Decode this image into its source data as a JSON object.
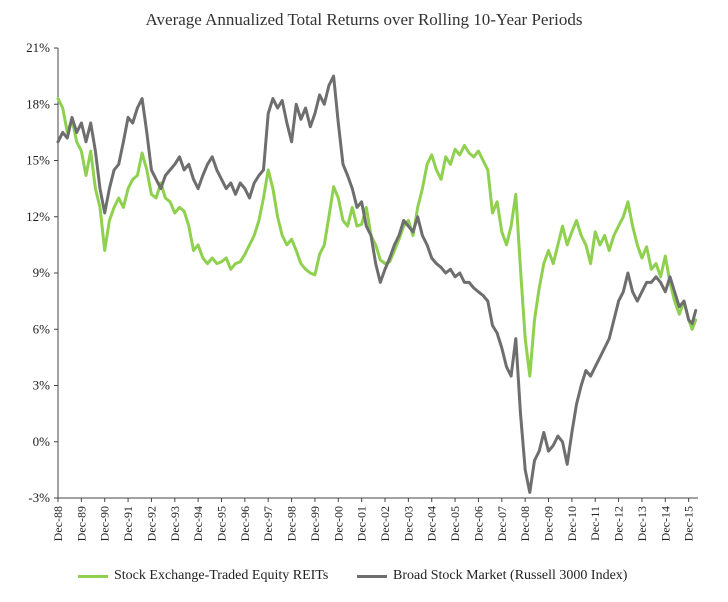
{
  "chart_data": {
    "type": "line",
    "title": "Average Annualized Total Returns over Rolling 10-Year Periods",
    "xlabel": "",
    "ylabel": "",
    "ylim": [
      -3,
      21
    ],
    "yticks": [
      21,
      18,
      15,
      12,
      9,
      6,
      3,
      0,
      -3
    ],
    "ytick_labels": [
      "21%",
      "18%",
      "15%",
      "12%",
      "9%",
      "6%",
      "3%",
      "0%",
      "-3%"
    ],
    "categories": [
      "Dec-88",
      "Dec-89",
      "Dec-90",
      "Dec-91",
      "Dec-92",
      "Dec-93",
      "Dec-94",
      "Dec-95",
      "Dec-96",
      "Dec-97",
      "Dec-98",
      "Dec-99",
      "Dec-00",
      "Dec-01",
      "Dec-02",
      "Dec-03",
      "Dec-04",
      "Dec-05",
      "Dec-06",
      "Dec-07",
      "Dec-08",
      "Dec-09",
      "Dec-10",
      "Dec-11",
      "Dec-12",
      "Dec-13",
      "Dec-14",
      "Dec-15"
    ],
    "series": [
      {
        "name": "Stock Exchange-Traded Equity REITs",
        "color": "#8fd14f",
        "points": [
          [
            0,
            18.3
          ],
          [
            0.2,
            17.8
          ],
          [
            0.4,
            16.5
          ],
          [
            0.6,
            17.2
          ],
          [
            0.8,
            16.0
          ],
          [
            1.0,
            15.5
          ],
          [
            1.2,
            14.2
          ],
          [
            1.4,
            15.5
          ],
          [
            1.6,
            13.5
          ],
          [
            1.8,
            12.5
          ],
          [
            2.0,
            10.2
          ],
          [
            2.2,
            11.8
          ],
          [
            2.4,
            12.5
          ],
          [
            2.6,
            13.0
          ],
          [
            2.8,
            12.5
          ],
          [
            3.0,
            13.5
          ],
          [
            3.2,
            14.0
          ],
          [
            3.4,
            14.2
          ],
          [
            3.6,
            15.4
          ],
          [
            3.8,
            14.5
          ],
          [
            4.0,
            13.2
          ],
          [
            4.2,
            13.0
          ],
          [
            4.4,
            13.8
          ],
          [
            4.6,
            13.0
          ],
          [
            4.8,
            12.8
          ],
          [
            5.0,
            12.2
          ],
          [
            5.2,
            12.5
          ],
          [
            5.4,
            12.3
          ],
          [
            5.6,
            11.5
          ],
          [
            5.8,
            10.2
          ],
          [
            6.0,
            10.5
          ],
          [
            6.2,
            9.8
          ],
          [
            6.4,
            9.5
          ],
          [
            6.6,
            9.8
          ],
          [
            6.8,
            9.5
          ],
          [
            7.0,
            9.6
          ],
          [
            7.2,
            9.8
          ],
          [
            7.4,
            9.2
          ],
          [
            7.6,
            9.5
          ],
          [
            7.8,
            9.6
          ],
          [
            8.0,
            10.0
          ],
          [
            8.2,
            10.5
          ],
          [
            8.4,
            11.0
          ],
          [
            8.6,
            11.8
          ],
          [
            8.8,
            13.0
          ],
          [
            9.0,
            14.5
          ],
          [
            9.2,
            13.5
          ],
          [
            9.4,
            12.0
          ],
          [
            9.6,
            11.0
          ],
          [
            9.8,
            10.5
          ],
          [
            10.0,
            10.8
          ],
          [
            10.2,
            10.2
          ],
          [
            10.4,
            9.5
          ],
          [
            10.6,
            9.2
          ],
          [
            10.8,
            9.0
          ],
          [
            11.0,
            8.9
          ],
          [
            11.2,
            10.0
          ],
          [
            11.4,
            10.5
          ],
          [
            11.6,
            12.0
          ],
          [
            11.8,
            13.6
          ],
          [
            12.0,
            13.0
          ],
          [
            12.2,
            11.8
          ],
          [
            12.4,
            11.5
          ],
          [
            12.6,
            12.5
          ],
          [
            12.8,
            11.5
          ],
          [
            13.0,
            11.6
          ],
          [
            13.2,
            12.5
          ],
          [
            13.4,
            11.0
          ],
          [
            13.6,
            10.5
          ],
          [
            13.8,
            9.7
          ],
          [
            14.0,
            9.5
          ],
          [
            14.2,
            9.6
          ],
          [
            14.4,
            10.2
          ],
          [
            14.6,
            10.8
          ],
          [
            14.8,
            11.5
          ],
          [
            15.0,
            11.8
          ],
          [
            15.2,
            11.0
          ],
          [
            15.4,
            12.5
          ],
          [
            15.6,
            13.5
          ],
          [
            15.8,
            14.8
          ],
          [
            16.0,
            15.3
          ],
          [
            16.2,
            14.5
          ],
          [
            16.4,
            14.0
          ],
          [
            16.6,
            15.2
          ],
          [
            16.8,
            14.8
          ],
          [
            17.0,
            15.6
          ],
          [
            17.2,
            15.3
          ],
          [
            17.4,
            15.8
          ],
          [
            17.6,
            15.4
          ],
          [
            17.8,
            15.2
          ],
          [
            18.0,
            15.5
          ],
          [
            18.2,
            15.0
          ],
          [
            18.4,
            14.5
          ],
          [
            18.6,
            12.2
          ],
          [
            18.8,
            12.8
          ],
          [
            19.0,
            11.2
          ],
          [
            19.2,
            10.5
          ],
          [
            19.4,
            11.5
          ],
          [
            19.6,
            13.2
          ],
          [
            19.8,
            9.2
          ],
          [
            20.0,
            5.5
          ],
          [
            20.2,
            3.5
          ],
          [
            20.4,
            6.5
          ],
          [
            20.6,
            8.2
          ],
          [
            20.8,
            9.5
          ],
          [
            21.0,
            10.2
          ],
          [
            21.2,
            9.5
          ],
          [
            21.4,
            10.5
          ],
          [
            21.6,
            11.5
          ],
          [
            21.8,
            10.5
          ],
          [
            22.0,
            11.2
          ],
          [
            22.2,
            11.8
          ],
          [
            22.4,
            11.0
          ],
          [
            22.6,
            10.5
          ],
          [
            22.8,
            9.5
          ],
          [
            23.0,
            11.2
          ],
          [
            23.2,
            10.5
          ],
          [
            23.4,
            11.0
          ],
          [
            23.6,
            10.2
          ],
          [
            23.8,
            11.0
          ],
          [
            24.0,
            11.5
          ],
          [
            24.2,
            12.0
          ],
          [
            24.4,
            12.8
          ],
          [
            24.6,
            11.5
          ],
          [
            24.8,
            10.5
          ],
          [
            25.0,
            9.8
          ],
          [
            25.2,
            10.4
          ],
          [
            25.4,
            9.2
          ],
          [
            25.6,
            9.5
          ],
          [
            25.8,
            8.8
          ],
          [
            26.0,
            9.9
          ],
          [
            26.2,
            8.5
          ],
          [
            26.4,
            7.5
          ],
          [
            26.6,
            6.8
          ],
          [
            26.8,
            7.5
          ],
          [
            27.0,
            6.5
          ],
          [
            27.15,
            6.0
          ],
          [
            27.3,
            6.5
          ]
        ]
      },
      {
        "name": "Broad Stock Market (Russell 3000 Index)",
        "color": "#6e6e6e",
        "points": [
          [
            0,
            16.0
          ],
          [
            0.2,
            16.5
          ],
          [
            0.4,
            16.2
          ],
          [
            0.6,
            17.3
          ],
          [
            0.8,
            16.5
          ],
          [
            1.0,
            17.0
          ],
          [
            1.2,
            16.0
          ],
          [
            1.4,
            17.0
          ],
          [
            1.6,
            15.5
          ],
          [
            1.8,
            13.5
          ],
          [
            2.0,
            12.2
          ],
          [
            2.2,
            13.5
          ],
          [
            2.4,
            14.5
          ],
          [
            2.6,
            14.8
          ],
          [
            2.8,
            16.0
          ],
          [
            3.0,
            17.3
          ],
          [
            3.2,
            17.0
          ],
          [
            3.4,
            17.8
          ],
          [
            3.6,
            18.3
          ],
          [
            3.8,
            16.5
          ],
          [
            4.0,
            14.5
          ],
          [
            4.2,
            14.0
          ],
          [
            4.4,
            13.5
          ],
          [
            4.6,
            14.2
          ],
          [
            4.8,
            14.5
          ],
          [
            5.0,
            14.8
          ],
          [
            5.2,
            15.2
          ],
          [
            5.4,
            14.5
          ],
          [
            5.6,
            14.8
          ],
          [
            5.8,
            14.0
          ],
          [
            6.0,
            13.5
          ],
          [
            6.2,
            14.2
          ],
          [
            6.4,
            14.8
          ],
          [
            6.6,
            15.2
          ],
          [
            6.8,
            14.5
          ],
          [
            7.0,
            14.0
          ],
          [
            7.2,
            13.5
          ],
          [
            7.4,
            13.8
          ],
          [
            7.6,
            13.2
          ],
          [
            7.8,
            13.8
          ],
          [
            8.0,
            13.5
          ],
          [
            8.2,
            13.0
          ],
          [
            8.4,
            13.8
          ],
          [
            8.6,
            14.2
          ],
          [
            8.8,
            14.5
          ],
          [
            9.0,
            17.5
          ],
          [
            9.2,
            18.3
          ],
          [
            9.4,
            17.8
          ],
          [
            9.6,
            18.2
          ],
          [
            9.8,
            17.0
          ],
          [
            10.0,
            16.0
          ],
          [
            10.2,
            18.0
          ],
          [
            10.4,
            17.2
          ],
          [
            10.6,
            17.8
          ],
          [
            10.8,
            16.8
          ],
          [
            11.0,
            17.5
          ],
          [
            11.2,
            18.5
          ],
          [
            11.4,
            18.0
          ],
          [
            11.6,
            19.0
          ],
          [
            11.8,
            19.5
          ],
          [
            12.0,
            17.0
          ],
          [
            12.2,
            14.8
          ],
          [
            12.4,
            14.2
          ],
          [
            12.6,
            13.5
          ],
          [
            12.8,
            12.5
          ],
          [
            13.0,
            12.8
          ],
          [
            13.2,
            11.5
          ],
          [
            13.4,
            11.0
          ],
          [
            13.6,
            9.5
          ],
          [
            13.8,
            8.5
          ],
          [
            14.0,
            9.2
          ],
          [
            14.2,
            9.8
          ],
          [
            14.4,
            10.5
          ],
          [
            14.6,
            11.0
          ],
          [
            14.8,
            11.8
          ],
          [
            15.0,
            11.5
          ],
          [
            15.2,
            11.2
          ],
          [
            15.4,
            12.0
          ],
          [
            15.6,
            11.0
          ],
          [
            15.8,
            10.5
          ],
          [
            16.0,
            9.8
          ],
          [
            16.2,
            9.5
          ],
          [
            16.4,
            9.3
          ],
          [
            16.6,
            9.0
          ],
          [
            16.8,
            9.2
          ],
          [
            17.0,
            8.8
          ],
          [
            17.2,
            9.0
          ],
          [
            17.4,
            8.5
          ],
          [
            17.6,
            8.5
          ],
          [
            17.8,
            8.2
          ],
          [
            18.0,
            8.0
          ],
          [
            18.2,
            7.8
          ],
          [
            18.4,
            7.5
          ],
          [
            18.6,
            6.2
          ],
          [
            18.8,
            5.8
          ],
          [
            19.0,
            5.0
          ],
          [
            19.2,
            4.0
          ],
          [
            19.4,
            3.5
          ],
          [
            19.6,
            5.5
          ],
          [
            19.8,
            1.5
          ],
          [
            20.0,
            -1.5
          ],
          [
            20.2,
            -2.7
          ],
          [
            20.4,
            -1.0
          ],
          [
            20.6,
            -0.5
          ],
          [
            20.8,
            0.5
          ],
          [
            21.0,
            -0.5
          ],
          [
            21.2,
            -0.2
          ],
          [
            21.4,
            0.3
          ],
          [
            21.6,
            0.0
          ],
          [
            21.8,
            -1.2
          ],
          [
            22.0,
            0.5
          ],
          [
            22.2,
            2.0
          ],
          [
            22.4,
            3.0
          ],
          [
            22.6,
            3.8
          ],
          [
            22.8,
            3.5
          ],
          [
            23.0,
            4.0
          ],
          [
            23.2,
            4.5
          ],
          [
            23.4,
            5.0
          ],
          [
            23.6,
            5.5
          ],
          [
            23.8,
            6.5
          ],
          [
            24.0,
            7.5
          ],
          [
            24.2,
            8.0
          ],
          [
            24.4,
            9.0
          ],
          [
            24.6,
            8.0
          ],
          [
            24.8,
            7.5
          ],
          [
            25.0,
            8.0
          ],
          [
            25.2,
            8.5
          ],
          [
            25.4,
            8.5
          ],
          [
            25.6,
            8.8
          ],
          [
            25.8,
            8.5
          ],
          [
            26.0,
            8.0
          ],
          [
            26.2,
            8.8
          ],
          [
            26.4,
            8.0
          ],
          [
            26.6,
            7.2
          ],
          [
            26.8,
            7.5
          ],
          [
            27.0,
            6.5
          ],
          [
            27.15,
            6.3
          ],
          [
            27.3,
            7.0
          ]
        ]
      }
    ],
    "legend": "bottom"
  }
}
